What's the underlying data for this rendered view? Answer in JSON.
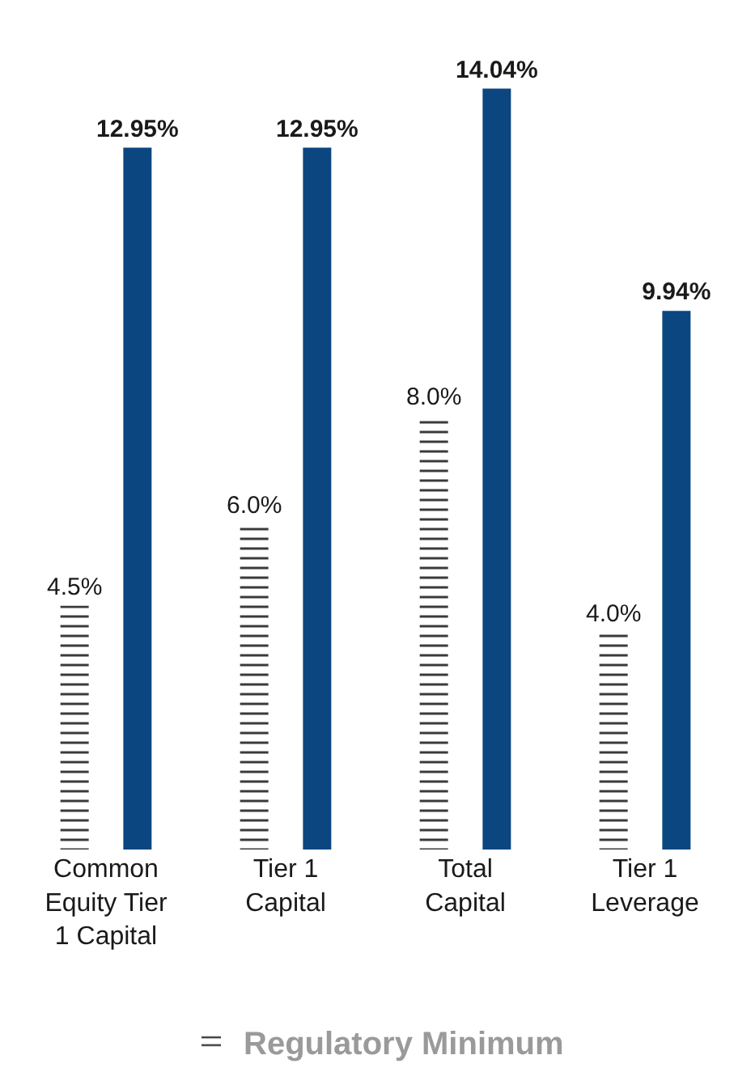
{
  "chart_data": {
    "type": "bar",
    "categories": [
      "Common Equity Tier 1 Capital",
      "Tier 1 Capital",
      "Total Capital",
      "Tier 1 Leverage"
    ],
    "series": [
      {
        "name": "Regulatory Minimum",
        "color": "#3a3a3a",
        "values": [
          4.5,
          6.0,
          8.0,
          4.0
        ],
        "value_labels": [
          "4.5%",
          "6.0%",
          "8.0%",
          "4.0%"
        ]
      },
      {
        "color": "#0b4680",
        "values": [
          12.95,
          12.95,
          14.04,
          9.94
        ],
        "value_labels": [
          "12.95%",
          "12.95%",
          "14.04%",
          "9.94%"
        ]
      }
    ],
    "grid": false,
    "legend": "bottom"
  }
}
